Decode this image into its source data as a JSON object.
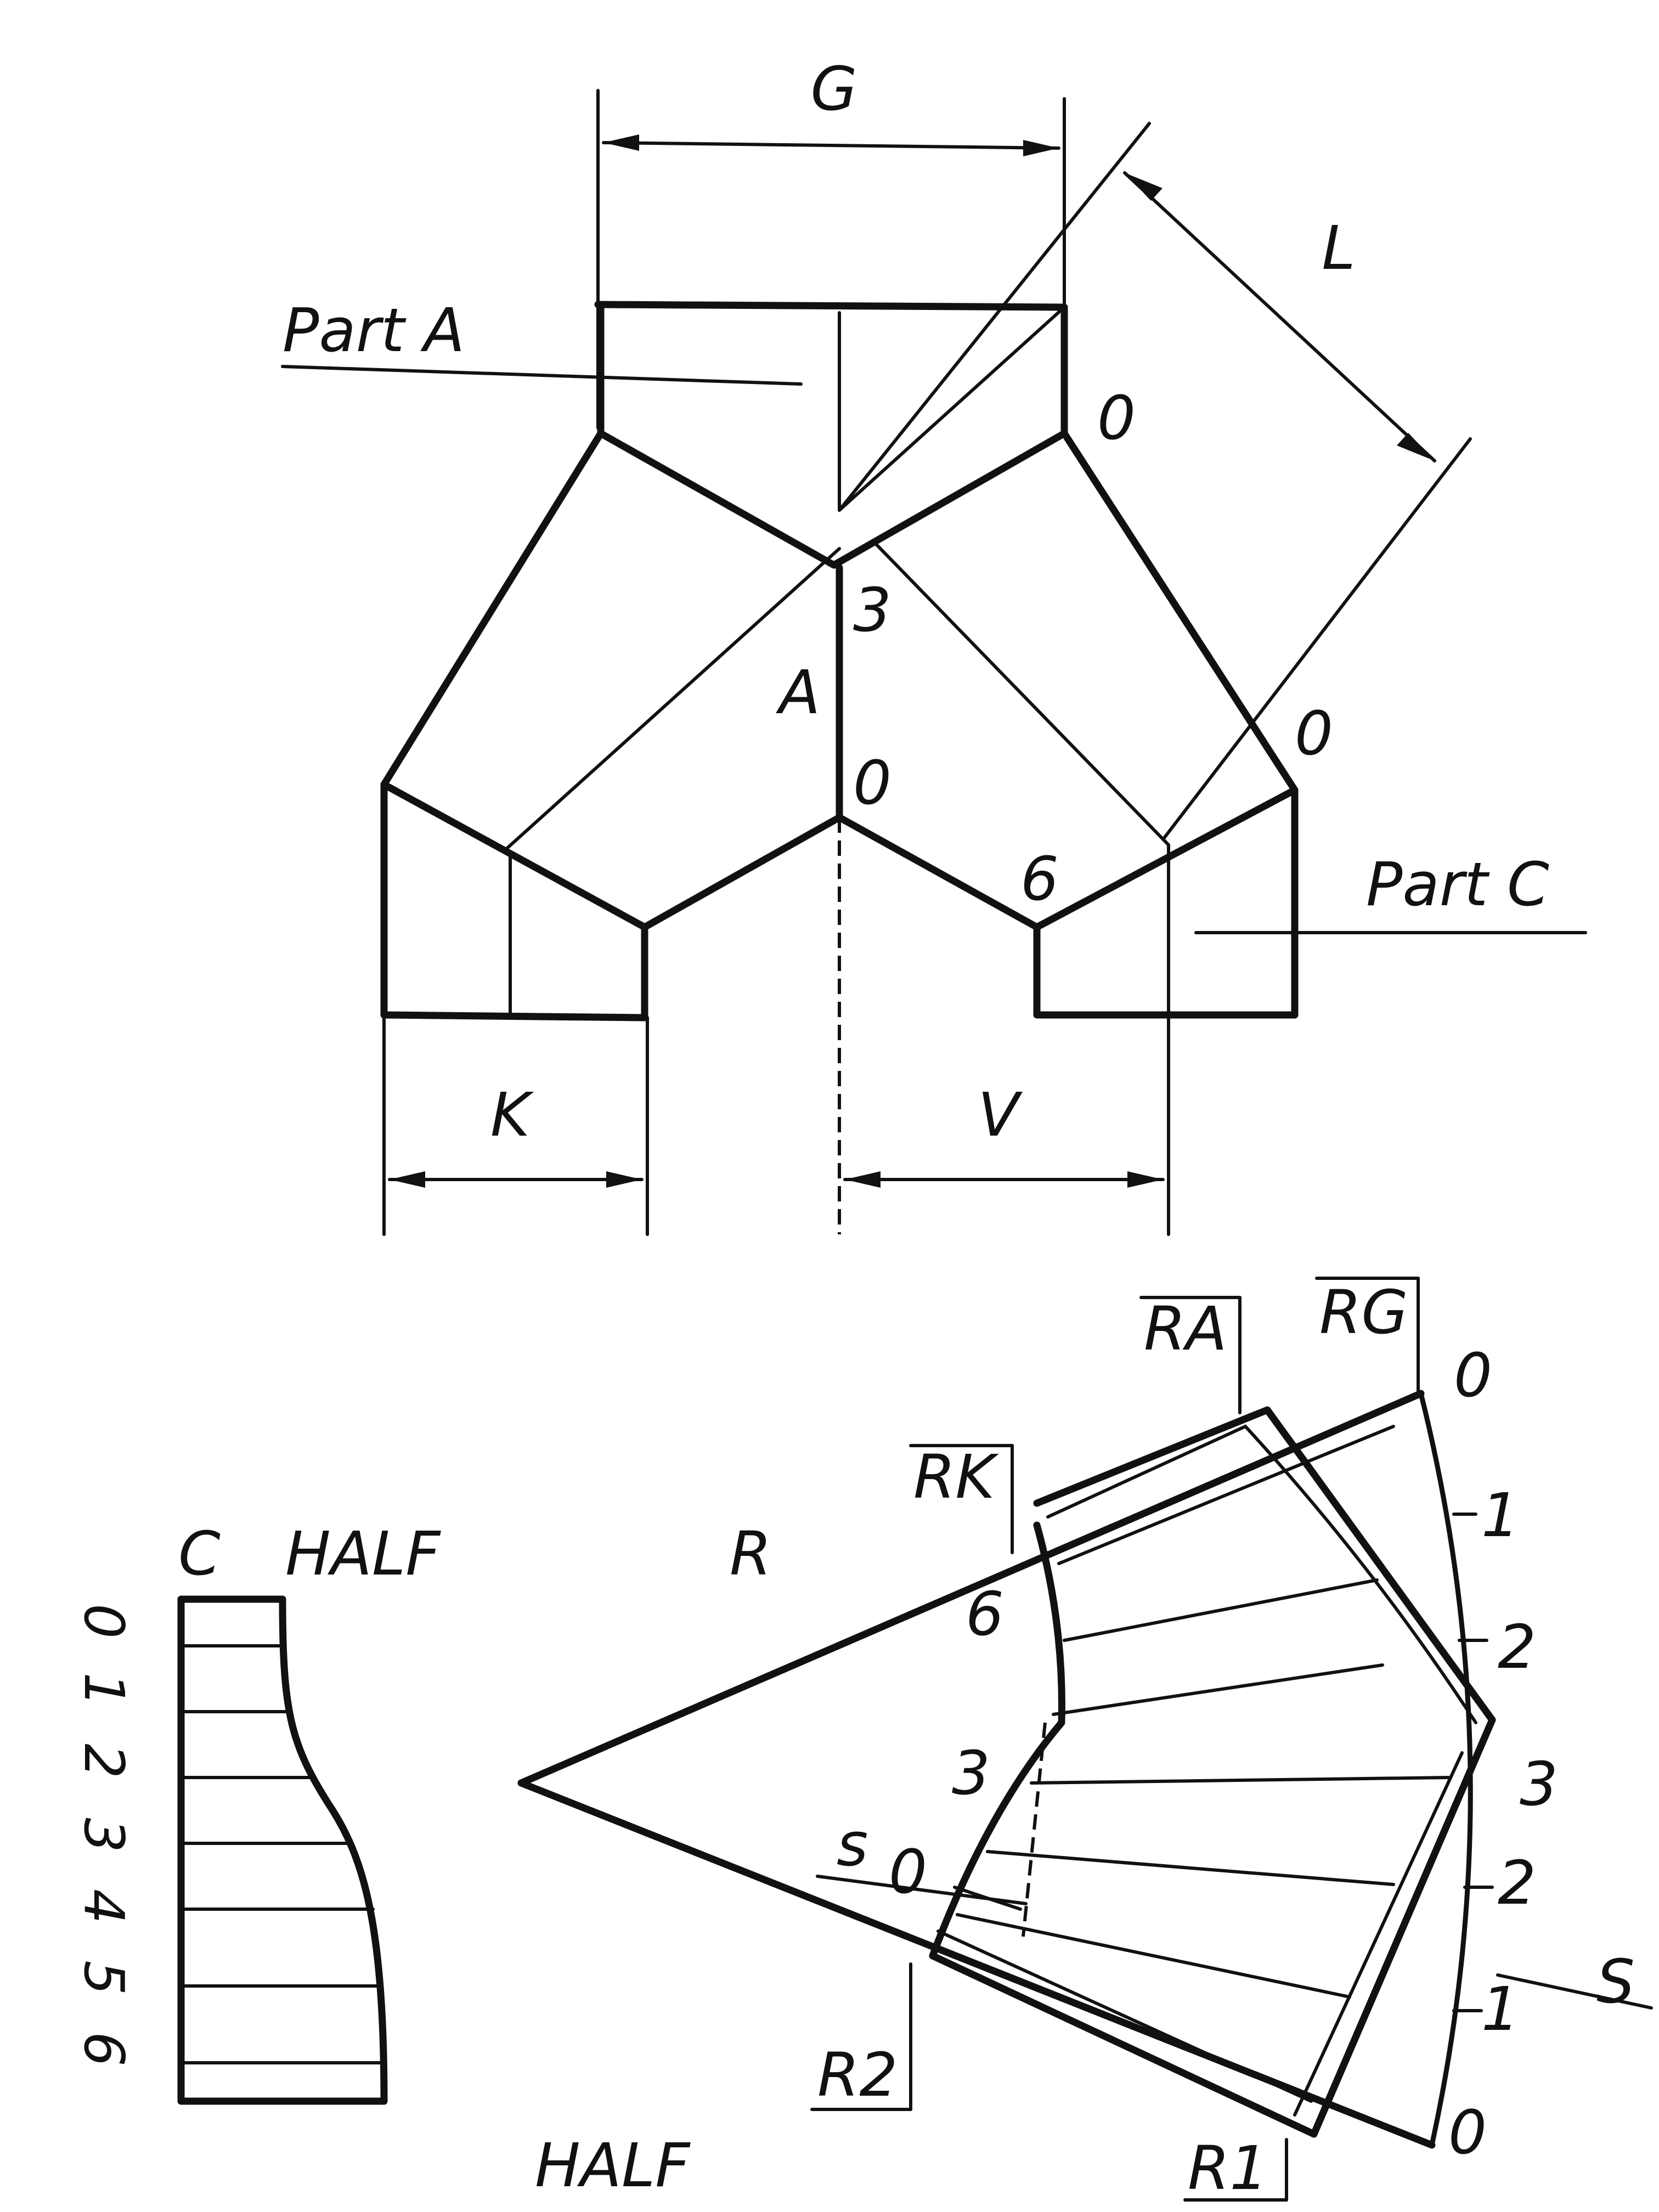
{
  "upper_view": {
    "dimensions": {
      "g": "G",
      "l": "L",
      "k": "K",
      "v": "V"
    },
    "parts": {
      "part_a": "Part A",
      "part_c": "Part C"
    },
    "seam_labels": {
      "center_top": "3",
      "center_letter": "A",
      "center_bottom": "0",
      "right_top": "0",
      "right_mid": "0",
      "right_low": "6"
    }
  },
  "half_profile": {
    "title_c": "C",
    "title_half": "HALF",
    "scale": [
      "0",
      "1",
      "2",
      "3",
      "4",
      "5",
      "6"
    ]
  },
  "development": {
    "apex_label": "R",
    "radius_labels": {
      "ra": "RA",
      "rg": "RG",
      "rk": "RK",
      "r1": "R1",
      "r2": "R2"
    },
    "inner_numbers": [
      "6",
      "3",
      "0"
    ],
    "outer_scale": [
      "0",
      "1",
      "2",
      "3",
      "2",
      "1",
      "0"
    ],
    "s_small": "s",
    "s_large": "S",
    "bottom_label": "HALF"
  }
}
